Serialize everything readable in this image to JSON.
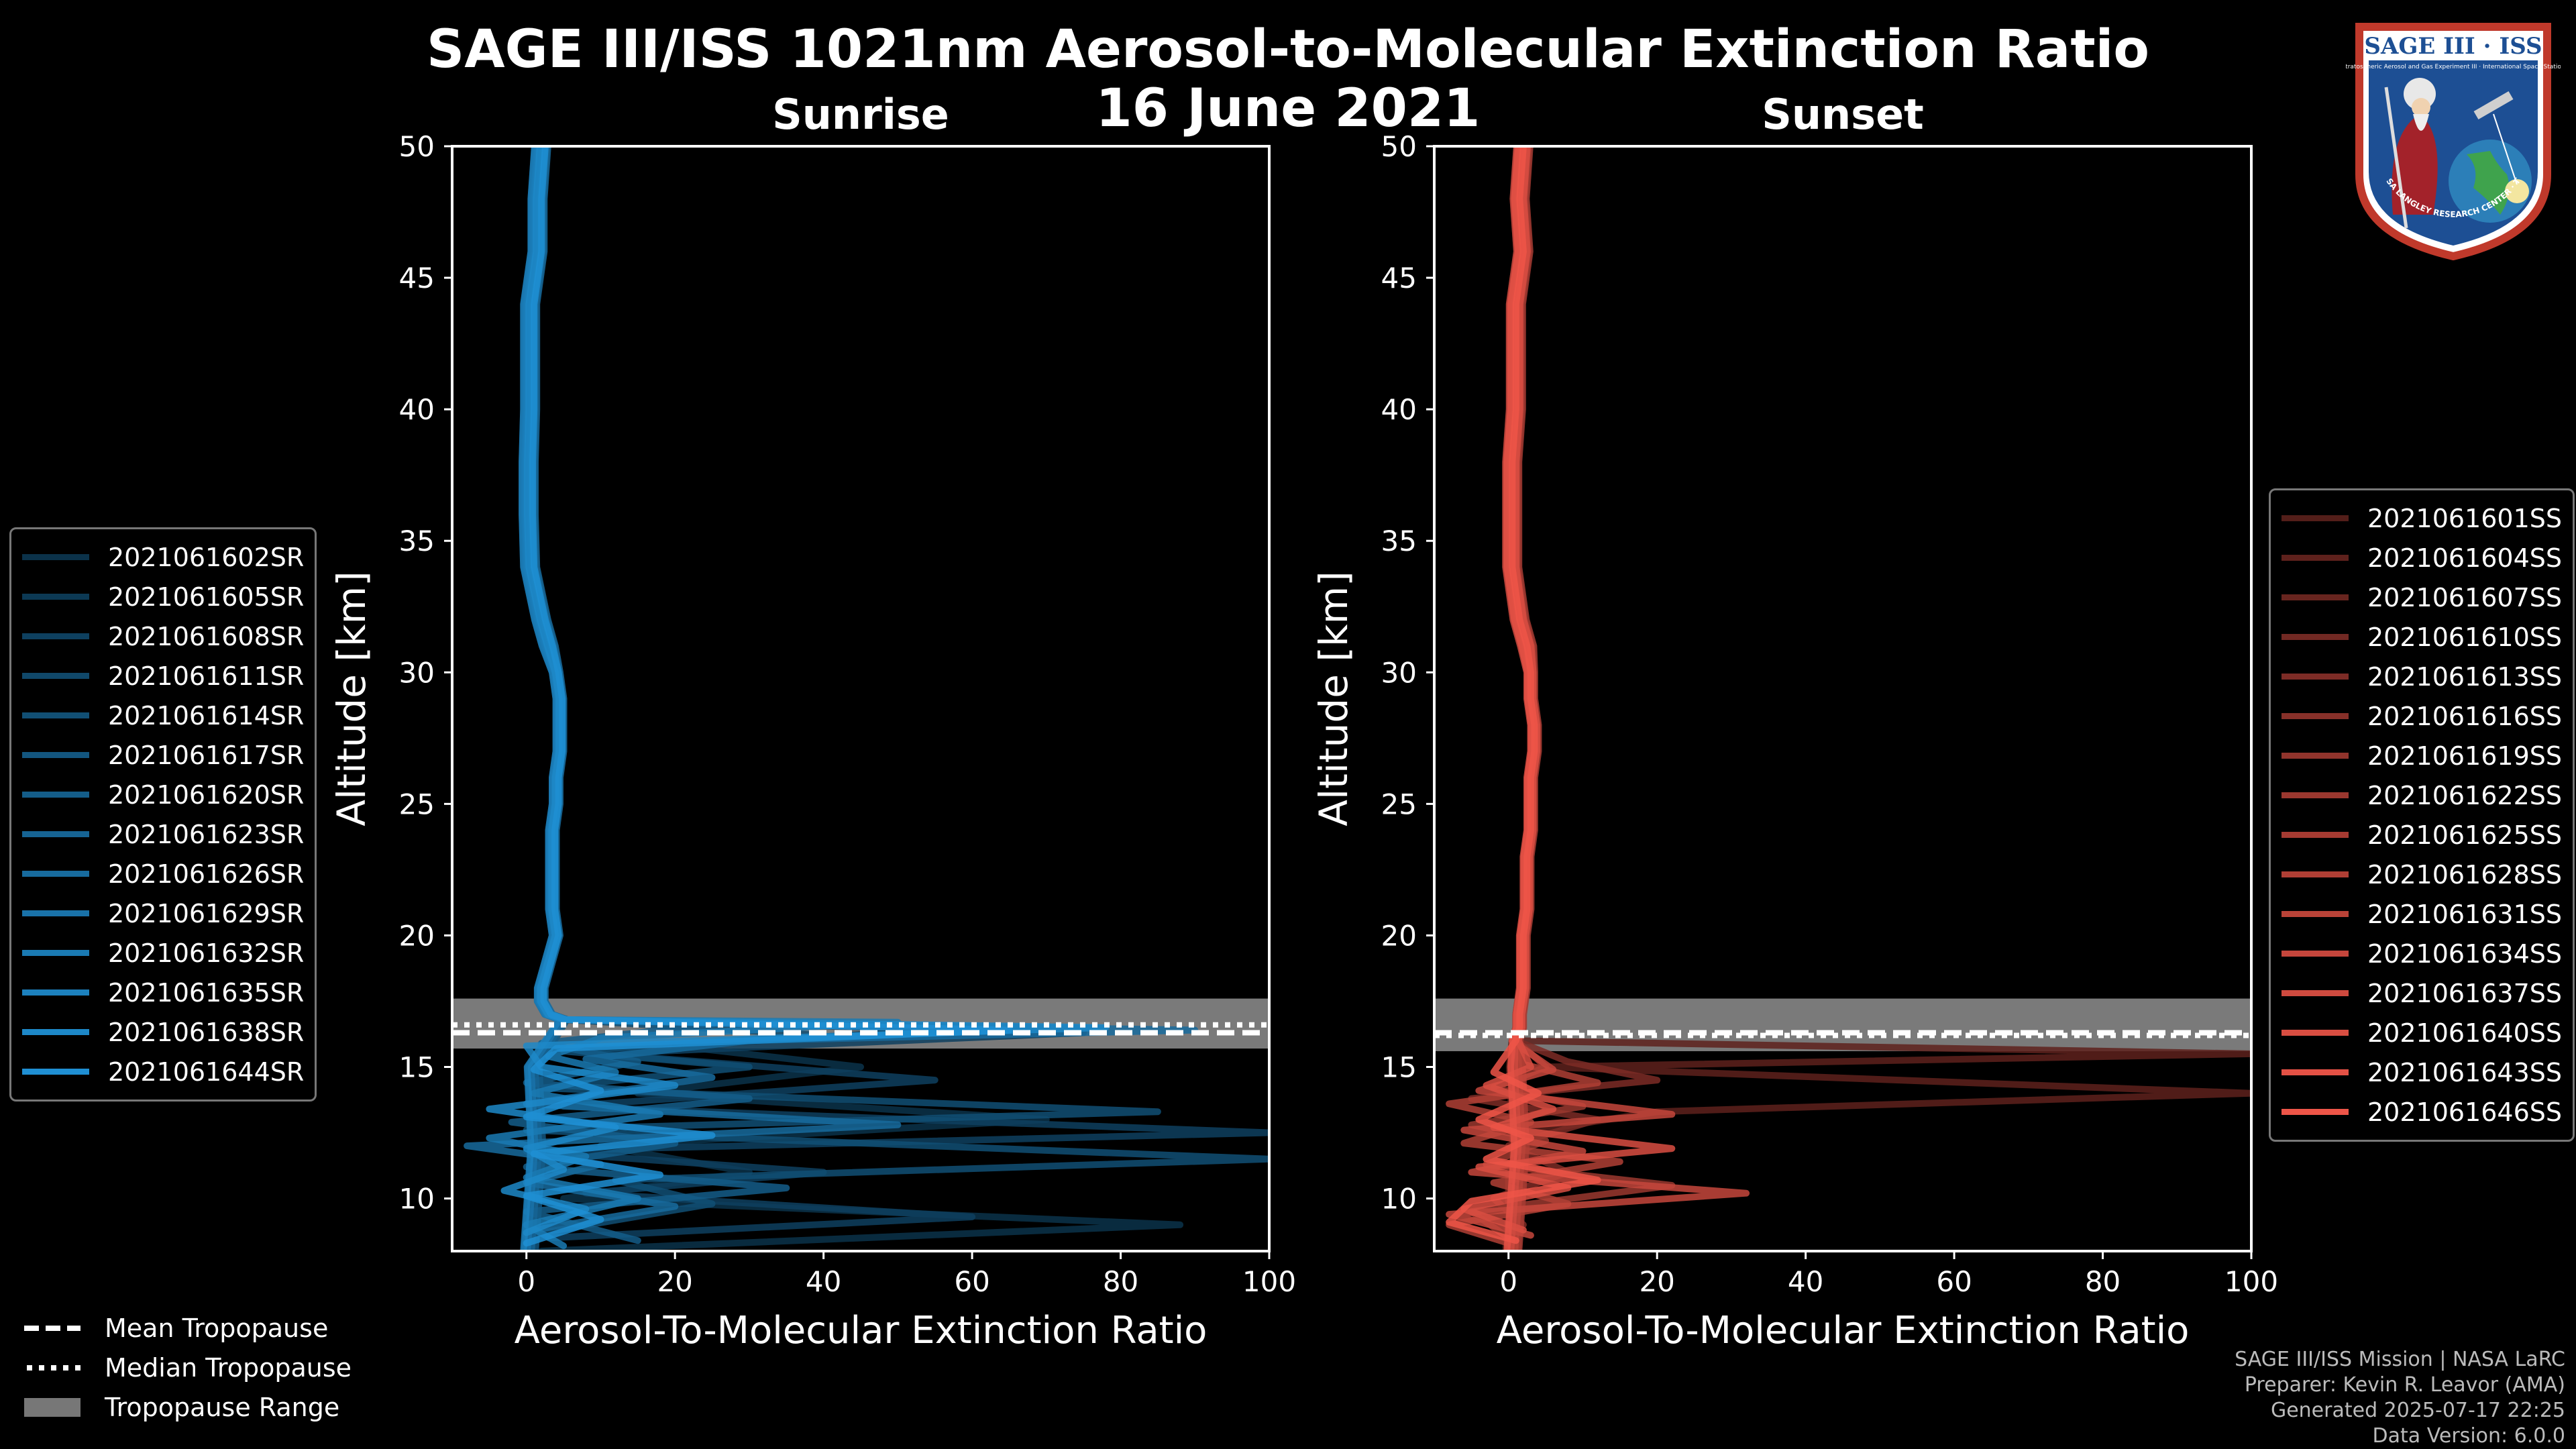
{
  "title": "SAGE III/ISS 1021nm Aerosol-to-Molecular Extinction Ratio",
  "date": "16 June 2021",
  "logo": {
    "name": "SAGE III · ISS",
    "subtitle": "Stratospheric Aerosol and Gas Experiment III · International Space Station",
    "ring_text": "BALL · NASA LANGLEY RESEARCH CENTER · TAS-I · ESA"
  },
  "credits": {
    "mission": "SAGE III/ISS Mission | NASA LaRC",
    "preparer": "Preparer: Kevin R. Leavor (AMA)",
    "generated": "Generated 2025-07-17 22:25",
    "version": "Data Version: 6.0.0"
  },
  "tropopause_legend": {
    "mean": "Mean Tropopause",
    "median": "Median Tropopause",
    "range": "Tropopause Range"
  },
  "chart_data": [
    {
      "type": "line",
      "title": "Sunrise",
      "xlabel": "Aerosol-To-Molecular Extinction Ratio",
      "ylabel": "Altitude [km]",
      "xlim": [
        -10,
        100
      ],
      "ylim": [
        8,
        50
      ],
      "xticks": [
        0,
        20,
        40,
        60,
        80,
        100
      ],
      "yticks": [
        10,
        15,
        20,
        25,
        30,
        35,
        40,
        45,
        50
      ],
      "color": "#1f8fd3",
      "tropopause": {
        "mean": 16.3,
        "median": 16.6,
        "range": [
          15.7,
          17.6
        ]
      },
      "series_names": [
        "2021061602SR",
        "2021061605SR",
        "2021061608SR",
        "2021061611SR",
        "2021061614SR",
        "2021061617SR",
        "2021061620SR",
        "2021061623SR",
        "2021061626SR",
        "2021061629SR",
        "2021061632SR",
        "2021061635SR",
        "2021061638SR",
        "2021061644SR"
      ],
      "base_profile": {
        "altitude": [
          50,
          48,
          46,
          44,
          42,
          40,
          38,
          36,
          34,
          32,
          31,
          30,
          29,
          28,
          27,
          26,
          25,
          24,
          23,
          22,
          21,
          20,
          19,
          18,
          17.5,
          17,
          16.8
        ],
        "ratio": [
          2,
          1.5,
          1.5,
          0.5,
          0.5,
          0.5,
          0.3,
          0.3,
          0.5,
          2,
          3,
          4,
          4.5,
          4.5,
          4.5,
          4,
          4,
          3.5,
          3.5,
          3.5,
          3.5,
          4,
          3,
          2,
          2,
          3,
          5
        ]
      },
      "lower_excursions": [
        {
          "series": 0,
          "points": [
            [
              16.5,
              60
            ],
            [
              15.8,
              20
            ],
            [
              15,
              45
            ],
            [
              14,
              15
            ],
            [
              13,
              70
            ],
            [
              12,
              10
            ],
            [
              11,
              30
            ],
            [
              10,
              5
            ],
            [
              9,
              88
            ],
            [
              8,
              2
            ]
          ]
        },
        {
          "series": 2,
          "points": [
            [
              16.3,
              75
            ],
            [
              15.5,
              10
            ],
            [
              14.5,
              55
            ],
            [
              13.5,
              5
            ],
            [
              12.5,
              100
            ],
            [
              11.8,
              0
            ],
            [
              11,
              40
            ],
            [
              10.2,
              8
            ],
            [
              9.3,
              60
            ],
            [
              8.5,
              3
            ]
          ]
        },
        {
          "series": 4,
          "points": [
            [
              16.2,
              40
            ],
            [
              15.6,
              5
            ],
            [
              15,
              30
            ],
            [
              14.2,
              2
            ],
            [
              13.3,
              85
            ],
            [
              12.6,
              0
            ],
            [
              11.5,
              100
            ],
            [
              10.7,
              12
            ],
            [
              9.8,
              25
            ],
            [
              8.6,
              0
            ]
          ]
        },
        {
          "series": 6,
          "points": [
            [
              16.6,
              25
            ],
            [
              15.9,
              2
            ],
            [
              15.2,
              15
            ],
            [
              14.4,
              0
            ],
            [
              13.8,
              30
            ],
            [
              12.9,
              -2
            ],
            [
              12.1,
              20
            ],
            [
              11.2,
              0
            ],
            [
              10.4,
              35
            ],
            [
              9.5,
              0
            ],
            [
              8.4,
              15
            ]
          ]
        },
        {
          "series": 8,
          "points": [
            [
              16.4,
              90
            ],
            [
              16,
              30
            ],
            [
              15.3,
              8
            ],
            [
              14.6,
              25
            ],
            [
              13.6,
              0
            ],
            [
              12.8,
              50
            ],
            [
              12,
              -8
            ],
            [
              11.3,
              10
            ],
            [
              10.6,
              0
            ],
            [
              9.7,
              20
            ],
            [
              8.8,
              1
            ]
          ]
        },
        {
          "series": 10,
          "points": [
            [
              16.7,
              50
            ],
            [
              16.1,
              10
            ],
            [
              15.4,
              3
            ],
            [
              14.8,
              12
            ],
            [
              14,
              1
            ],
            [
              13.2,
              18
            ],
            [
              12.3,
              -5
            ],
            [
              11.6,
              8
            ],
            [
              10.8,
              0
            ],
            [
              10,
              15
            ],
            [
              9,
              0
            ],
            [
              8.2,
              5
            ]
          ]
        },
        {
          "series": 12,
          "points": [
            [
              16.5,
              78
            ],
            [
              15.8,
              0
            ],
            [
              15,
              2
            ],
            [
              14.3,
              20
            ],
            [
              13.4,
              -5
            ],
            [
              12.7,
              12
            ],
            [
              11.9,
              0
            ],
            [
              11.1,
              5
            ],
            [
              10.3,
              -3
            ],
            [
              9.6,
              8
            ],
            [
              8.7,
              0
            ]
          ]
        },
        {
          "series": 13,
          "points": [
            [
              16.4,
              65
            ],
            [
              15.7,
              4
            ],
            [
              14.9,
              1
            ],
            [
              14.1,
              10
            ],
            [
              13.1,
              0
            ],
            [
              12.4,
              25
            ],
            [
              11.7,
              1
            ],
            [
              10.9,
              18
            ],
            [
              10.1,
              0
            ],
            [
              9.2,
              10
            ],
            [
              8.3,
              0
            ]
          ]
        }
      ]
    },
    {
      "type": "line",
      "title": "Sunset",
      "xlabel": "Aerosol-To-Molecular Extinction Ratio",
      "ylabel": "Altitude [km]",
      "xlim": [
        -10,
        100
      ],
      "ylim": [
        8,
        50
      ],
      "xticks": [
        0,
        20,
        40,
        60,
        80,
        100
      ],
      "yticks": [
        10,
        15,
        20,
        25,
        30,
        35,
        40,
        45,
        50
      ],
      "color": "#ee5548",
      "tropopause": {
        "mean": 16.3,
        "median": 16.2,
        "range": [
          15.6,
          17.6
        ]
      },
      "series_names": [
        "2021061601SS",
        "2021061604SS",
        "2021061607SS",
        "2021061610SS",
        "2021061613SS",
        "2021061616SS",
        "2021061619SS",
        "2021061622SS",
        "2021061625SS",
        "2021061628SS",
        "2021061631SS",
        "2021061634SS",
        "2021061637SS",
        "2021061640SS",
        "2021061643SS",
        "2021061646SS"
      ],
      "base_profile": {
        "altitude": [
          50,
          48,
          46,
          44,
          42,
          40,
          38,
          36,
          34,
          32,
          31,
          30,
          29,
          28,
          27,
          26,
          25,
          24,
          23,
          22,
          21,
          20,
          19,
          18,
          17,
          16.5,
          16
        ],
        "ratio": [
          2,
          1.5,
          2,
          1,
          1,
          1,
          0.5,
          0.5,
          0.5,
          1.5,
          2.5,
          3,
          3,
          3.5,
          3.5,
          3,
          3,
          3,
          2.5,
          2.5,
          2.5,
          2,
          2,
          2,
          1.5,
          1.5,
          1
        ]
      },
      "lower_excursions": [
        {
          "series": 1,
          "points": [
            [
              15.5,
              100
            ],
            [
              15,
              5
            ],
            [
              14,
              100
            ],
            [
              13.3,
              20
            ],
            [
              12.5,
              2
            ],
            [
              11,
              0
            ],
            [
              9,
              0
            ],
            [
              8,
              0
            ]
          ]
        },
        {
          "series": 4,
          "points": [
            [
              15.2,
              8
            ],
            [
              14.5,
              20
            ],
            [
              13.8,
              -5
            ],
            [
              13,
              12
            ],
            [
              12,
              0
            ],
            [
              11,
              8
            ],
            [
              10,
              -2
            ],
            [
              9,
              2
            ]
          ]
        },
        {
          "series": 7,
          "points": [
            [
              15,
              5
            ],
            [
              14.2,
              -2
            ],
            [
              13.5,
              10
            ],
            [
              12.8,
              -5
            ],
            [
              12.2,
              5
            ],
            [
              11.3,
              -3
            ],
            [
              10.5,
              22
            ],
            [
              9.5,
              -5
            ],
            [
              8.5,
              0
            ]
          ]
        },
        {
          "series": 9,
          "points": [
            [
              15.1,
              2
            ],
            [
              14.4,
              12
            ],
            [
              13.6,
              -8
            ],
            [
              12.9,
              3
            ],
            [
              12.1,
              -6
            ],
            [
              11.4,
              15
            ],
            [
              10.6,
              -2
            ],
            [
              9.8,
              8
            ],
            [
              9,
              -8
            ],
            [
              8.3,
              0
            ]
          ]
        },
        {
          "series": 11,
          "points": [
            [
              14.9,
              6
            ],
            [
              14.1,
              -4
            ],
            [
              13.2,
              22
            ],
            [
              12.6,
              -6
            ],
            [
              11.8,
              10
            ],
            [
              11,
              -5
            ],
            [
              10.2,
              32
            ],
            [
              9.4,
              -8
            ],
            [
              8.6,
              3
            ]
          ]
        },
        {
          "series": 13,
          "points": [
            [
              15,
              3
            ],
            [
              14.3,
              -3
            ],
            [
              13.4,
              6
            ],
            [
              12.7,
              -2
            ],
            [
              11.9,
              22
            ],
            [
              11.2,
              -4
            ],
            [
              10.4,
              8
            ],
            [
              9.6,
              -6
            ],
            [
              8.8,
              2
            ]
          ]
        },
        {
          "series": 15,
          "points": [
            [
              14.8,
              -2
            ],
            [
              14,
              4
            ],
            [
              13,
              -4
            ],
            [
              12.3,
              3
            ],
            [
              11.5,
              -3
            ],
            [
              10.7,
              12
            ],
            [
              9.9,
              -5
            ],
            [
              9.1,
              -8
            ],
            [
              8.4,
              1
            ]
          ]
        }
      ]
    }
  ]
}
